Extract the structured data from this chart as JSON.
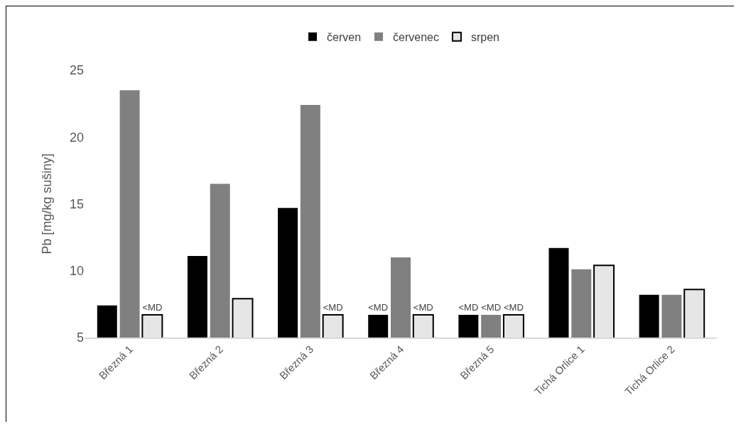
{
  "chart_data": {
    "type": "bar",
    "ylabel": "Pb [mg/kg sušiny]",
    "categories": [
      "Březná 1",
      "Březná 2",
      "Březná 3",
      "Březná 4",
      "Březná 5",
      "Tichá Orlice 1",
      "Tichá Orlice 2"
    ],
    "series": [
      {
        "name": "červen",
        "color": "#000000",
        "values": [
          7.4,
          11.1,
          14.7,
          6.7,
          6.7,
          11.7,
          8.2
        ],
        "value_labels": [
          null,
          null,
          null,
          "<MD",
          "<MD",
          null,
          null
        ]
      },
      {
        "name": "červenec",
        "color": "#808080",
        "values": [
          23.5,
          16.5,
          22.4,
          11.0,
          6.7,
          10.1,
          8.2
        ],
        "value_labels": [
          null,
          null,
          null,
          null,
          "<MD",
          null,
          null
        ]
      },
      {
        "name": "srpen",
        "color": "#e6e6e6",
        "values": [
          6.7,
          7.9,
          6.7,
          6.7,
          6.7,
          10.4,
          8.6
        ],
        "value_labels": [
          "<MD",
          null,
          "<MD",
          "<MD",
          "<MD",
          null,
          null
        ]
      }
    ],
    "ylim": [
      5,
      25
    ],
    "yticks": [
      5,
      10,
      15,
      20,
      25
    ],
    "grid": false,
    "legend": "top"
  }
}
